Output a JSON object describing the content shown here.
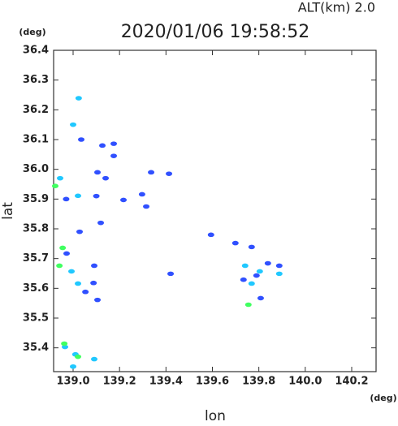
{
  "chart_data": {
    "type": "scatter",
    "title": "2020/01/06 19:58:52",
    "subtitle": "ALT(km)  2.0",
    "y_unit": "(deg)",
    "x_unit": "(deg)",
    "y_label": "lat",
    "x_label": "lon",
    "xlim": [
      138.916,
      140.305
    ],
    "ylim": [
      35.32,
      36.4
    ],
    "xticks": [
      {
        "value": 139,
        "label": "139.0"
      },
      139.2,
      139.4,
      139.6,
      139.8,
      {
        "value": 140,
        "label": "140.0"
      },
      140.2
    ],
    "yticks": [
      35.4,
      35.5,
      35.6,
      35.7,
      35.8,
      35.9,
      {
        "value": 36,
        "label": "36.0"
      },
      36.1,
      36.2,
      36.3,
      36.4
    ],
    "series": [
      {
        "color": "#3050ff",
        "x": [
          139.035,
          139.126,
          139.175,
          139.105,
          139.14,
          138.97,
          139.1,
          139.217,
          139.297,
          139.336,
          139.413,
          139.119,
          139.028,
          138.972,
          139.091,
          139.088,
          139.053,
          139.105,
          139.42,
          139.594,
          139.699,
          139.769,
          139.79,
          139.839,
          139.888,
          139.808,
          139.734,
          139.315,
          139.175
        ],
        "y": [
          36.1,
          36.08,
          36.086,
          35.99,
          35.97,
          35.9,
          35.91,
          35.897,
          35.916,
          35.99,
          35.985,
          35.82,
          35.79,
          35.717,
          35.676,
          35.618,
          35.588,
          35.561,
          35.649,
          35.78,
          35.752,
          35.739,
          35.643,
          35.684,
          35.676,
          35.567,
          35.629,
          35.875,
          36.045
        ]
      },
      {
        "color": "#20c8ff",
        "x": [
          139.024,
          139.0,
          138.944,
          139.021,
          138.993,
          139.021,
          138.965,
          139.01,
          139.0,
          139.091,
          139.769,
          139.804,
          139.888,
          139.741
        ],
        "y": [
          36.239,
          36.15,
          35.97,
          35.911,
          35.657,
          35.616,
          35.403,
          35.378,
          35.337,
          35.362,
          35.616,
          35.657,
          35.649,
          35.676
        ]
      },
      {
        "color": "#40ff60",
        "x": [
          138.955,
          138.941,
          138.923,
          138.962,
          139.755,
          139.021
        ],
        "y": [
          35.736,
          35.676,
          35.944,
          35.414,
          35.545,
          35.37
        ]
      }
    ]
  }
}
